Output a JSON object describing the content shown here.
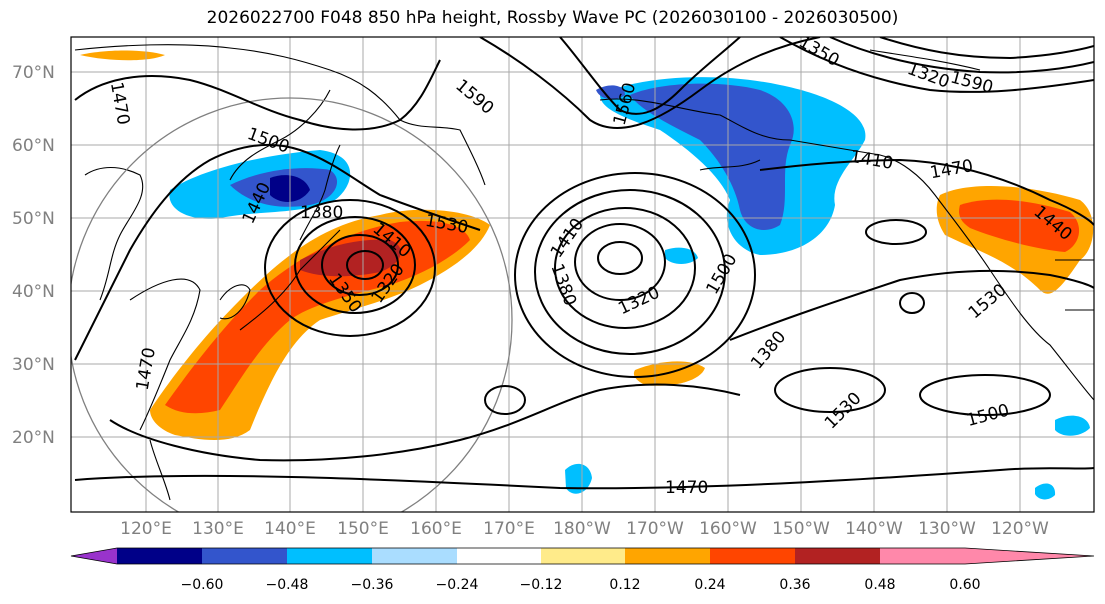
{
  "title": "2026022700 F048 850 hPa height, Rossby Wave PC (2026030100 - 2026030500)",
  "lon_labels": [
    "120°E",
    "130°E",
    "140°E",
    "150°E",
    "160°E",
    "170°E",
    "180°W",
    "170°W",
    "160°W",
    "150°W",
    "140°W",
    "130°W",
    "120°W"
  ],
  "lat_labels": [
    "70°N",
    "60°N",
    "50°N",
    "40°N",
    "30°N",
    "20°N"
  ],
  "contour_labels": [
    "1470",
    "1590",
    "1350",
    "1560",
    "1320",
    "1590",
    "1500",
    "1440",
    "1380",
    "1530",
    "1410",
    "1320",
    "1350",
    "1410",
    "1380",
    "1320",
    "1500",
    "1380",
    "1410",
    "1470",
    "1440",
    "1530",
    "1530",
    "1500",
    "1470"
  ],
  "colorbar": {
    "ticks": [
      "−0.60",
      "−0.48",
      "−0.36",
      "−0.24",
      "−0.12",
      "0.12",
      "0.24",
      "0.36",
      "0.48",
      "0.60"
    ],
    "colors": [
      "#9933cc",
      "#000088",
      "#3355cc",
      "#00bfff",
      "#aaddff",
      "#ffffff",
      "#ffeb8a",
      "#ffa500",
      "#ff4500",
      "#b22222",
      "#ff88aa"
    ]
  }
}
